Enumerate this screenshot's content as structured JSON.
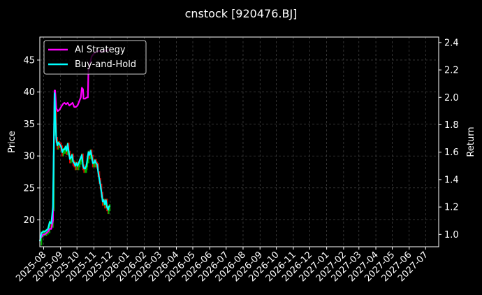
{
  "chart_data": {
    "type": "line",
    "title": "cnstock [920476.BJ]",
    "ylabel": "Price",
    "y2label": "Return",
    "ylim": [
      15.8,
      48.6
    ],
    "y2lim": [
      0.91,
      2.44
    ],
    "yticks": [
      20,
      25,
      30,
      35,
      40,
      45
    ],
    "y2ticks": [
      1.0,
      1.2,
      1.4,
      1.6,
      1.8,
      2.0,
      2.2,
      2.4
    ],
    "xlim": [
      "2025-07-25",
      "2027-07-25"
    ],
    "xticks": [
      "2025-08",
      "2025-09",
      "2025-10",
      "2025-11",
      "2025-12",
      "2026-01",
      "2026-02",
      "2026-03",
      "2026-04",
      "2026-05",
      "2026-06",
      "2026-07",
      "2026-08",
      "2026-09",
      "2026-10",
      "2026-11",
      "2026-12",
      "2027-01",
      "2027-02",
      "2027-03",
      "2027-04",
      "2027-05",
      "2027-06",
      "2027-07"
    ],
    "grid": true,
    "legend_position": "top-left",
    "background": "#000000",
    "series": [
      {
        "name": "AI Strategy",
        "color": "#ff00ff",
        "axis": "right",
        "points": [
          [
            "2025-07-25",
            0.97
          ],
          [
            "2025-07-28",
            0.98
          ],
          [
            "2025-07-31",
            1.0
          ],
          [
            "2025-08-03",
            1.0
          ],
          [
            "2025-08-06",
            1.01
          ],
          [
            "2025-08-09",
            1.02
          ],
          [
            "2025-08-12",
            1.04
          ],
          [
            "2025-08-15",
            1.04
          ],
          [
            "2025-08-18",
            1.1
          ],
          [
            "2025-08-20",
            1.7
          ],
          [
            "2025-08-21",
            2.05
          ],
          [
            "2025-08-22",
            2.05
          ],
          [
            "2025-08-24",
            1.92
          ],
          [
            "2025-08-27",
            1.9
          ],
          [
            "2025-08-30",
            1.91
          ],
          [
            "2025-09-02",
            1.93
          ],
          [
            "2025-09-05",
            1.95
          ],
          [
            "2025-09-08",
            1.96
          ],
          [
            "2025-09-11",
            1.95
          ],
          [
            "2025-09-14",
            1.96
          ],
          [
            "2025-09-17",
            1.94
          ],
          [
            "2025-09-20",
            1.95
          ],
          [
            "2025-09-23",
            1.96
          ],
          [
            "2025-09-26",
            1.93
          ],
          [
            "2025-09-29",
            1.93
          ],
          [
            "2025-10-02",
            1.94
          ],
          [
            "2025-10-05",
            1.97
          ],
          [
            "2025-10-08",
            2.0
          ],
          [
            "2025-10-10",
            2.07
          ],
          [
            "2025-10-12",
            2.06
          ],
          [
            "2025-10-13",
            1.99
          ],
          [
            "2025-10-16",
            1.99
          ],
          [
            "2025-10-19",
            2.0
          ],
          [
            "2025-10-21",
            2.0
          ],
          [
            "2025-10-22",
            2.2
          ],
          [
            "2025-10-25",
            2.25
          ],
          [
            "2025-10-28",
            2.3
          ],
          [
            "2025-11-01",
            2.32
          ],
          [
            "2025-11-05",
            2.33
          ],
          [
            "2025-11-10",
            2.34
          ],
          [
            "2025-11-15",
            2.33
          ],
          [
            "2025-11-20",
            2.34
          ],
          [
            "2025-11-25",
            2.34
          ],
          [
            "2025-11-28",
            2.35
          ]
        ]
      },
      {
        "name": "Buy-and-Hold",
        "color": "#00ffff",
        "axis": "right",
        "points": [
          [
            "2025-07-25",
            0.95
          ],
          [
            "2025-07-28",
            1.01
          ],
          [
            "2025-07-31",
            1.02
          ],
          [
            "2025-08-03",
            1.02
          ],
          [
            "2025-08-06",
            1.03
          ],
          [
            "2025-08-09",
            1.04
          ],
          [
            "2025-08-12",
            1.09
          ],
          [
            "2025-08-15",
            1.08
          ],
          [
            "2025-08-18",
            1.2
          ],
          [
            "2025-08-20",
            1.75
          ],
          [
            "2025-08-21",
            2.03
          ],
          [
            "2025-08-22",
            1.9
          ],
          [
            "2025-08-24",
            1.7
          ],
          [
            "2025-08-26",
            1.65
          ],
          [
            "2025-08-28",
            1.67
          ],
          [
            "2025-08-30",
            1.66
          ],
          [
            "2025-09-02",
            1.64
          ],
          [
            "2025-09-04",
            1.6
          ],
          [
            "2025-09-06",
            1.62
          ],
          [
            "2025-09-08",
            1.62
          ],
          [
            "2025-09-10",
            1.64
          ],
          [
            "2025-09-12",
            1.61
          ],
          [
            "2025-09-14",
            1.66
          ],
          [
            "2025-09-16",
            1.6
          ],
          [
            "2025-09-18",
            1.55
          ],
          [
            "2025-09-20",
            1.56
          ],
          [
            "2025-09-22",
            1.58
          ],
          [
            "2025-09-24",
            1.53
          ],
          [
            "2025-09-26",
            1.52
          ],
          [
            "2025-09-28",
            1.5
          ],
          [
            "2025-09-30",
            1.52
          ],
          [
            "2025-10-02",
            1.5
          ],
          [
            "2025-10-04",
            1.52
          ],
          [
            "2025-10-06",
            1.54
          ],
          [
            "2025-10-08",
            1.56
          ],
          [
            "2025-10-10",
            1.58
          ],
          [
            "2025-10-12",
            1.5
          ],
          [
            "2025-10-14",
            1.48
          ],
          [
            "2025-10-16",
            1.48
          ],
          [
            "2025-10-18",
            1.5
          ],
          [
            "2025-10-19",
            1.52
          ],
          [
            "2025-10-20",
            1.55
          ],
          [
            "2025-10-22",
            1.6
          ],
          [
            "2025-10-24",
            1.58
          ],
          [
            "2025-10-26",
            1.61
          ],
          [
            "2025-10-28",
            1.57
          ],
          [
            "2025-10-30",
            1.52
          ],
          [
            "2025-11-01",
            1.52
          ],
          [
            "2025-11-03",
            1.54
          ],
          [
            "2025-11-05",
            1.52
          ],
          [
            "2025-11-07",
            1.51
          ],
          [
            "2025-11-09",
            1.45
          ],
          [
            "2025-11-11",
            1.4
          ],
          [
            "2025-11-13",
            1.36
          ],
          [
            "2025-11-15",
            1.3
          ],
          [
            "2025-11-17",
            1.24
          ],
          [
            "2025-11-19",
            1.25
          ],
          [
            "2025-11-21",
            1.22
          ],
          [
            "2025-11-23",
            1.25
          ],
          [
            "2025-11-25",
            1.2
          ],
          [
            "2025-11-27",
            1.18
          ],
          [
            "2025-11-28",
            1.2
          ],
          [
            "2025-11-30",
            1.21
          ]
        ]
      }
    ],
    "underlay_colors": {
      "up": "#00b300",
      "down": "#e00000"
    }
  }
}
